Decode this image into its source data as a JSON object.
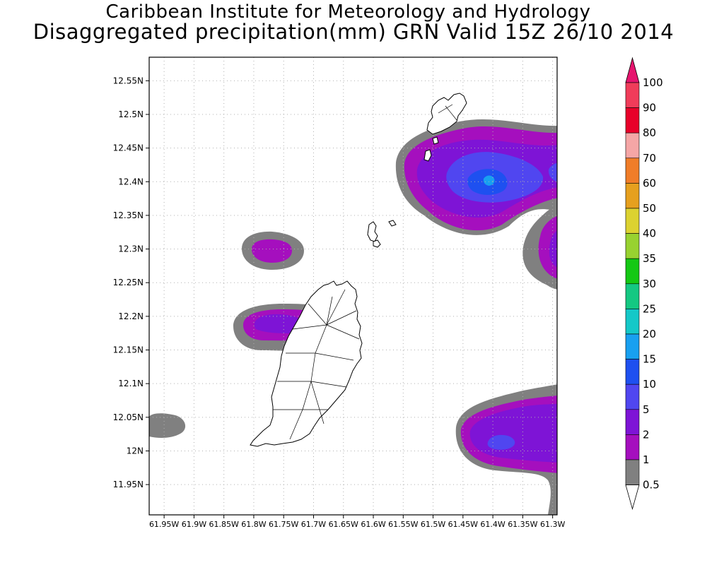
{
  "title": {
    "line1": "Caribbean Institute for Meteorology and Hydrology",
    "line2": "Disaggregated precipitation(mm) GRN Valid 15Z 26/10 2014"
  },
  "axes": {
    "lat_ticks": [
      "12.55N",
      "12.5N",
      "12.45N",
      "12.4N",
      "12.35N",
      "12.3N",
      "12.25N",
      "12.2N",
      "12.15N",
      "12.1N",
      "12.05N",
      "12N",
      "11.95N"
    ],
    "lon_ticks": [
      "61.95W",
      "61.9W",
      "61.85W",
      "61.8W",
      "61.75W",
      "61.7W",
      "61.65W",
      "61.6W",
      "61.55W",
      "61.5W",
      "61.45W",
      "61.4W",
      "61.35W",
      "61.3W"
    ],
    "lat_range": [
      11.905,
      12.585
    ],
    "lon_range": [
      -61.975,
      -61.2925
    ]
  },
  "legend": {
    "levels": [
      "100",
      "90",
      "80",
      "70",
      "60",
      "50",
      "40",
      "35",
      "30",
      "25",
      "20",
      "15",
      "10",
      "5",
      "2",
      "1",
      "0.5"
    ],
    "colors": [
      "#f03c5a",
      "#e8002a",
      "#f5a6a6",
      "#f07d28",
      "#e6a01e",
      "#dcd230",
      "#98d230",
      "#14c814",
      "#14c882",
      "#14c8c8",
      "#18a0f0",
      "#1e50f0",
      "#5046f0",
      "#7e14d6",
      "#a50fbe",
      "#808080",
      "#ffffff"
    ],
    "top_arrow_color": "#e6146e"
  },
  "precip_palette": {
    "gray_0_5_to_1": "#808080",
    "magenta_1_to_2": "#a50fbe",
    "purple_2_to_5": "#7e14d6",
    "blue_5_to_10": "#5046f0",
    "blue_10_to_15": "#1e50f0",
    "cyan_15_to_20": "#18a0f0"
  }
}
